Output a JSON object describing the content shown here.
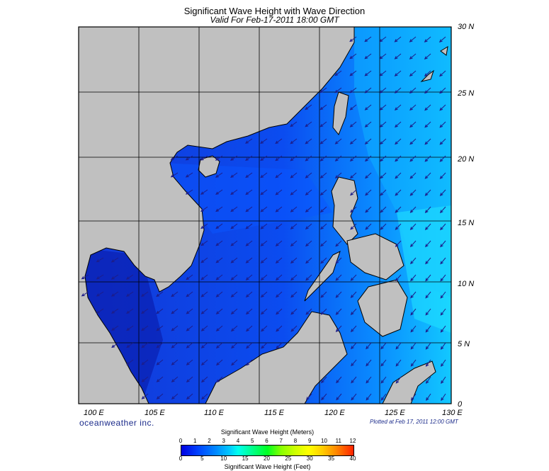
{
  "title": "Significant Wave Height with Wave Direction",
  "subtitle": "Valid For Feb-17-2011 18:00 GMT",
  "lat_labels": [
    "30 N",
    "25 N",
    "20 N",
    "15 N",
    "10 N",
    "5 N",
    "0"
  ],
  "lon_labels": [
    "100 E",
    "105 E",
    "110 E",
    "115 E",
    "120 E",
    "125 E",
    "130 E"
  ],
  "branding": "oceanweather inc.",
  "plotted_at": "Plotted at Feb 17, 2011 12:00 GMT",
  "colorbar": {
    "title_top": "Significant Wave Height (Meters)",
    "title_bottom": "Significant Wave Height (Feet)",
    "meters_ticks": [
      "0",
      "1",
      "2",
      "3",
      "4",
      "5",
      "6",
      "7",
      "8",
      "9",
      "10",
      "11",
      "12"
    ],
    "feet_ticks": [
      "0",
      "5",
      "10",
      "15",
      "20",
      "25",
      "30",
      "35",
      "40"
    ]
  },
  "colors": {
    "land": "#c0c0c0",
    "ocean_deep": "#0a2ecf",
    "ocean_mid": "#0066ff",
    "ocean_high": "#00c8ff",
    "arrow": "#1d1d8a"
  }
}
